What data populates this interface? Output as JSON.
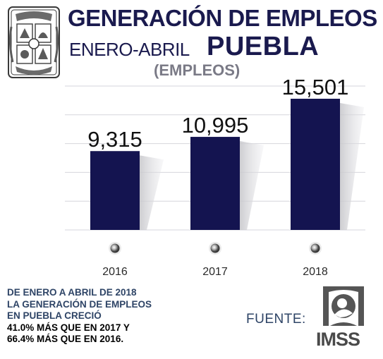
{
  "header": {
    "title": "GENERACIÓN DE EMPLEOS",
    "period": "ENERO-ABRIL",
    "state": "PUEBLA",
    "unit": "(EMPLEOS)"
  },
  "chart_data": {
    "type": "bar",
    "categories": [
      "2016",
      "2017",
      "2018"
    ],
    "values": [
      9315,
      10995,
      15501
    ],
    "value_labels": [
      "9,315",
      "10,995",
      "15,501"
    ],
    "title": "GENERACIÓN DE EMPLEOS",
    "xlabel": "",
    "ylabel": "",
    "ylim": [
      0,
      17000
    ],
    "grid": true,
    "legend": "none",
    "bar_color": "#141450"
  },
  "summary": {
    "lines": [
      "DE ENERO A ABRIL DE 2018",
      "LA GENERACIÓN DE EMPLEOS",
      "EN PUEBLA CRECIÓ",
      "41.0% MÁS QUE EN 2017 Y",
      "66.4% MÁS QUE EN 2016."
    ],
    "highlight_color": "#000000"
  },
  "source": {
    "label": "FUENTE:",
    "logo_text": "IMSS"
  },
  "colors": {
    "title": "#1a1a4e",
    "unit": "#7a7a86",
    "text": "#2e4466",
    "bar": "#141450"
  }
}
